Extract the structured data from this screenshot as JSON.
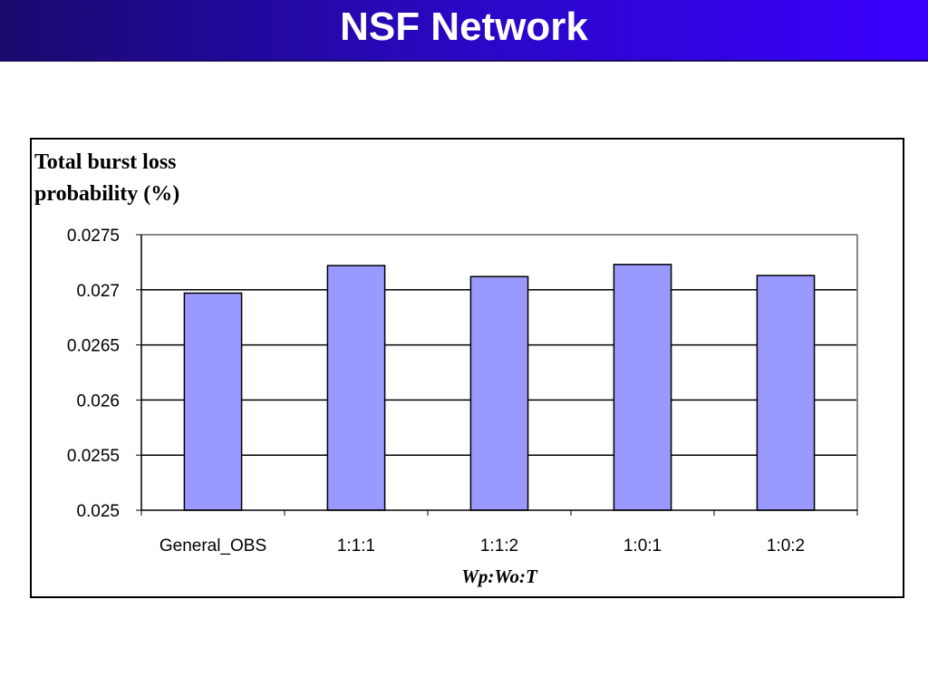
{
  "header": {
    "title": "NSF Network"
  },
  "chart_data": {
    "type": "bar",
    "title": "",
    "ylabel": "Total burst loss probability (%)",
    "xlabel": "Wp:Wo:T",
    "categories": [
      "General_OBS",
      "1:1:1",
      "1:1:2",
      "1:0:1",
      "1:0:2"
    ],
    "values": [
      0.02697,
      0.02722,
      0.02712,
      0.02723,
      0.02713
    ],
    "ylim": [
      0.025,
      0.0275
    ],
    "yticks": [
      "0.025",
      "0.0255",
      "0.026",
      "0.0265",
      "0.027",
      "0.0275"
    ],
    "grid": true,
    "legend": "none",
    "bar_color": "#9999ff"
  }
}
